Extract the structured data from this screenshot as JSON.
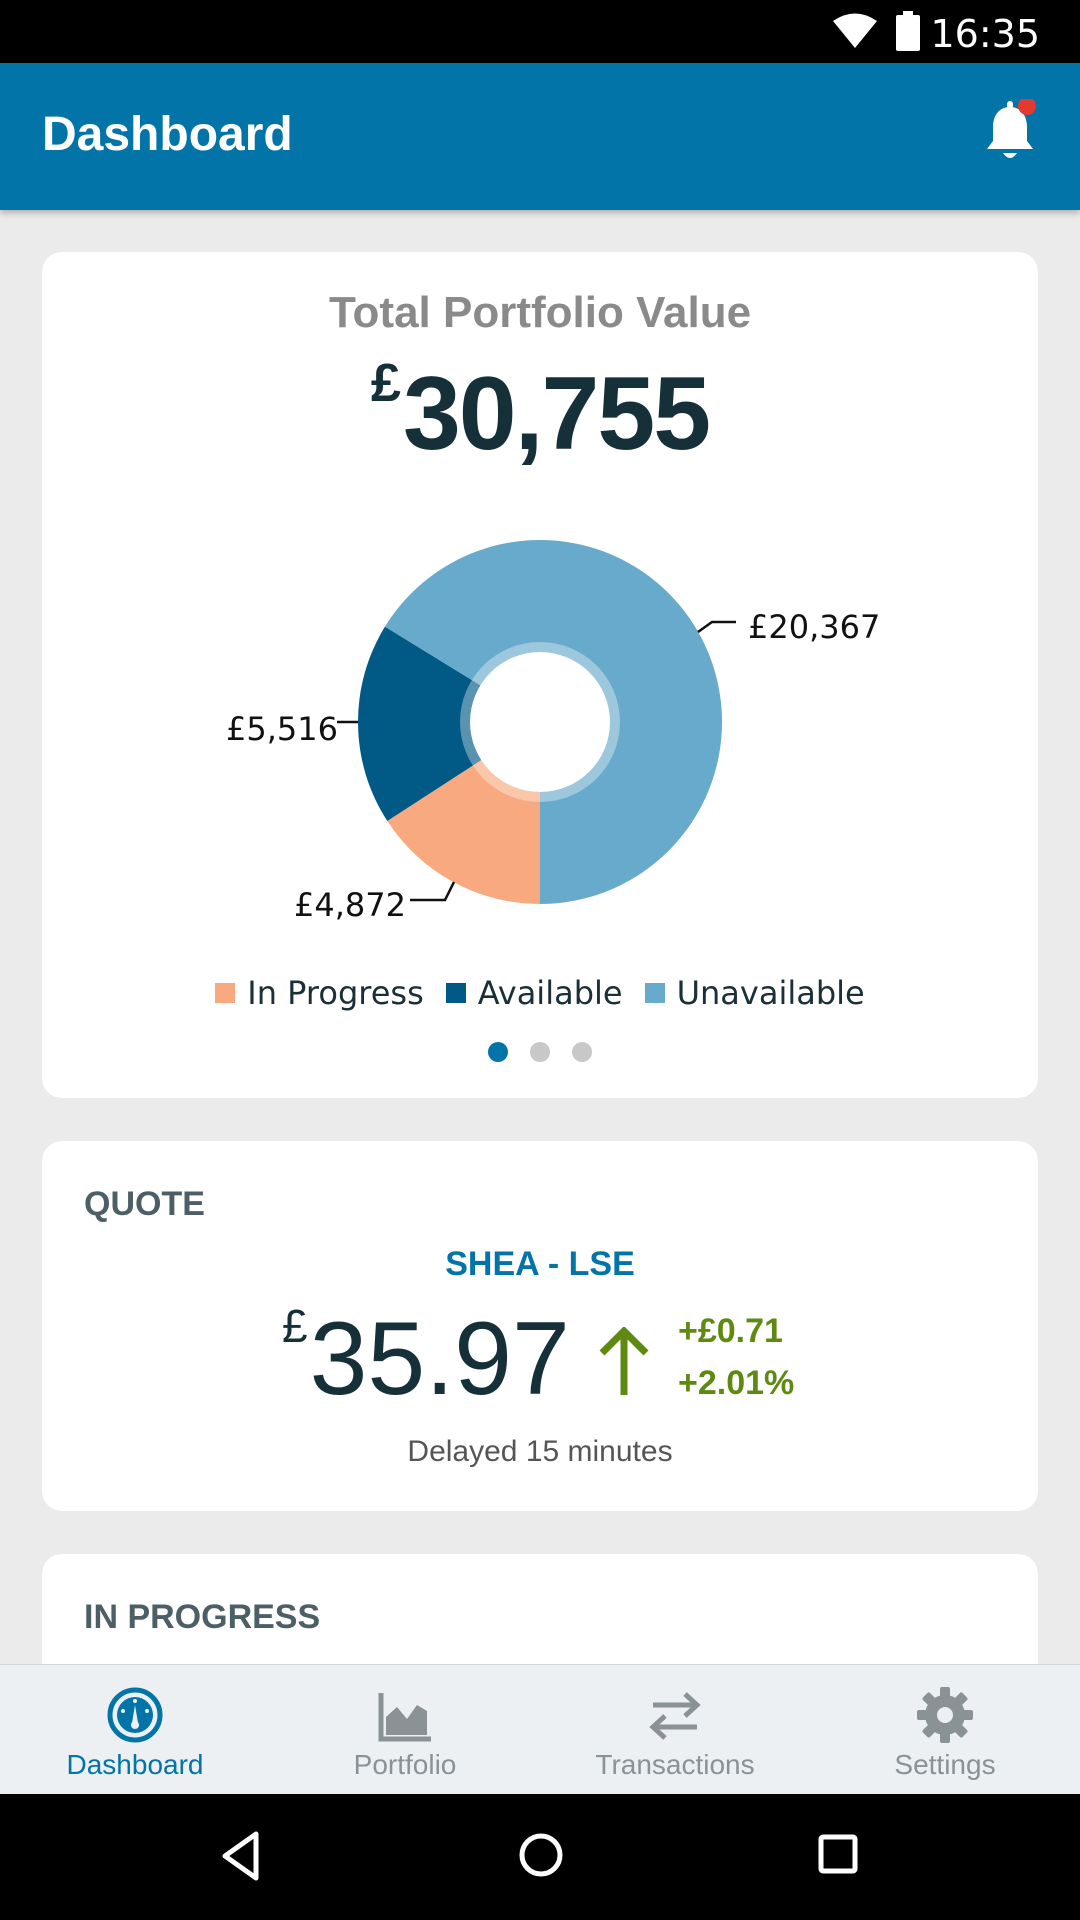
{
  "status_bar": {
    "time": "16:35"
  },
  "app_bar": {
    "title": "Dashboard"
  },
  "portfolio": {
    "title": "Total Portfolio Value",
    "currency": "£",
    "value": "30,755",
    "pager_dots": 3,
    "pager_active": 0,
    "colors": {
      "in_progress": "#f9a97f",
      "available": "#015a86",
      "unavailable": "#68aacb"
    }
  },
  "chart_data": {
    "type": "pie",
    "categories": [
      "In Progress",
      "Available",
      "Unavailable"
    ],
    "values": [
      4872,
      5516,
      20367
    ],
    "labels": [
      "£4,872",
      "£5,516",
      "£20,367"
    ],
    "legend": [
      "In Progress",
      "Available",
      "Unavailable"
    ],
    "legend_position": "bottom",
    "donut": true
  },
  "quote": {
    "label": "QUOTE",
    "symbol": "SHEA - LSE",
    "currency": "£",
    "price": "35.97",
    "change_abs": "+£0.71",
    "change_pct": "+2.01%",
    "delay": "Delayed 15 minutes",
    "direction": "up"
  },
  "in_progress": {
    "label": "IN PROGRESS"
  },
  "bottom_nav": {
    "items": [
      {
        "label": "Dashboard",
        "icon": "dashboard-gauge-icon",
        "active": true
      },
      {
        "label": "Portfolio",
        "icon": "area-chart-icon",
        "active": false
      },
      {
        "label": "Transactions",
        "icon": "swap-arrows-icon",
        "active": false
      },
      {
        "label": "Settings",
        "icon": "gear-icon",
        "active": false
      }
    ]
  }
}
